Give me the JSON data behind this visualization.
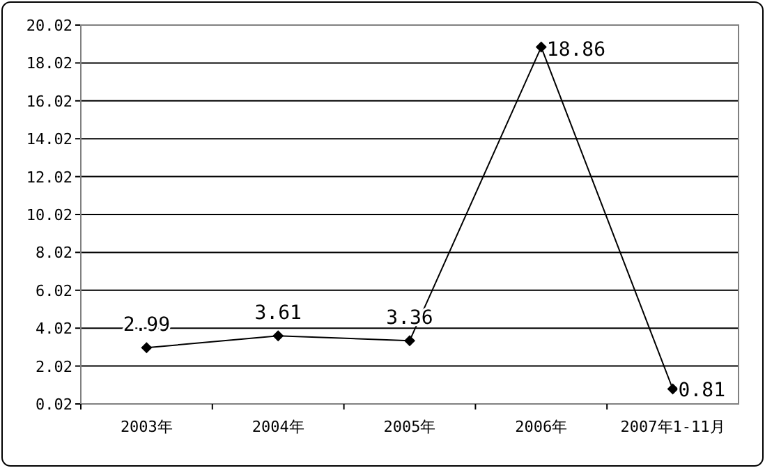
{
  "chart_data": {
    "type": "line",
    "categories": [
      "2003年",
      "2004年",
      "2005年",
      "2006年",
      "2007年1-11月"
    ],
    "series": [
      {
        "color": "#000000",
        "values": [
          2.99,
          3.61,
          3.36,
          18.86,
          0.81
        ]
      }
    ],
    "ylim": [
      0.02,
      20.02
    ],
    "yticks": [
      0.02,
      2.02,
      4.02,
      6.02,
      8.02,
      10.02,
      12.02,
      14.02,
      16.02,
      18.02,
      20.02
    ],
    "grid": "y",
    "marker": "diamond",
    "line_style": "solid",
    "data_labels": true
  }
}
